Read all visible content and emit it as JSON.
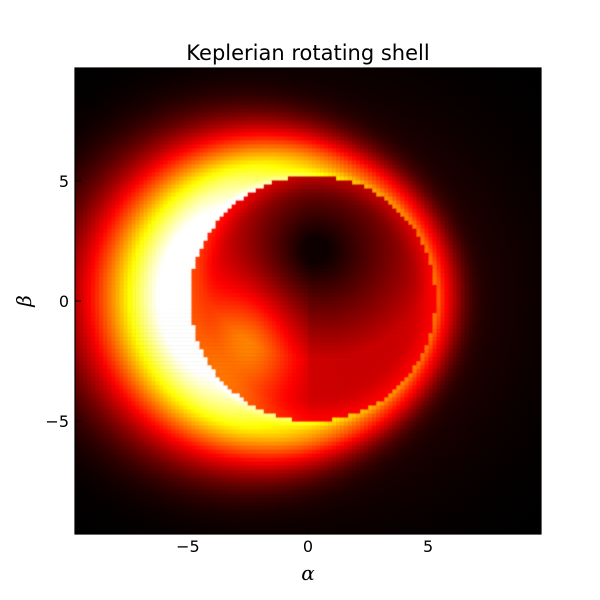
{
  "chart_data": {
    "type": "heatmap",
    "title": "Keplerian rotating shell",
    "xlabel": "α",
    "ylabel": "β",
    "xlim": [
      -9.7,
      9.7
    ],
    "ylim": [
      -9.7,
      9.7
    ],
    "xticks": [
      -5,
      0,
      5
    ],
    "yticks": [
      -5,
      0,
      5
    ],
    "xtick_labels": [
      "−5",
      "0",
      "5"
    ],
    "ytick_labels": [
      "−5",
      "0",
      "5"
    ],
    "grid": false,
    "legend": "none",
    "colormap": "hot",
    "colormap_stops": [
      "#000000",
      "#8b0000",
      "#ff2a00",
      "#ff9a20",
      "#ffffff"
    ],
    "features": {
      "bright_crescent_side": "left",
      "shadow_center": [
        0.2,
        0.1
      ],
      "shadow_radius": 5.1,
      "dark_core_center": [
        0.3,
        2.1
      ]
    }
  }
}
